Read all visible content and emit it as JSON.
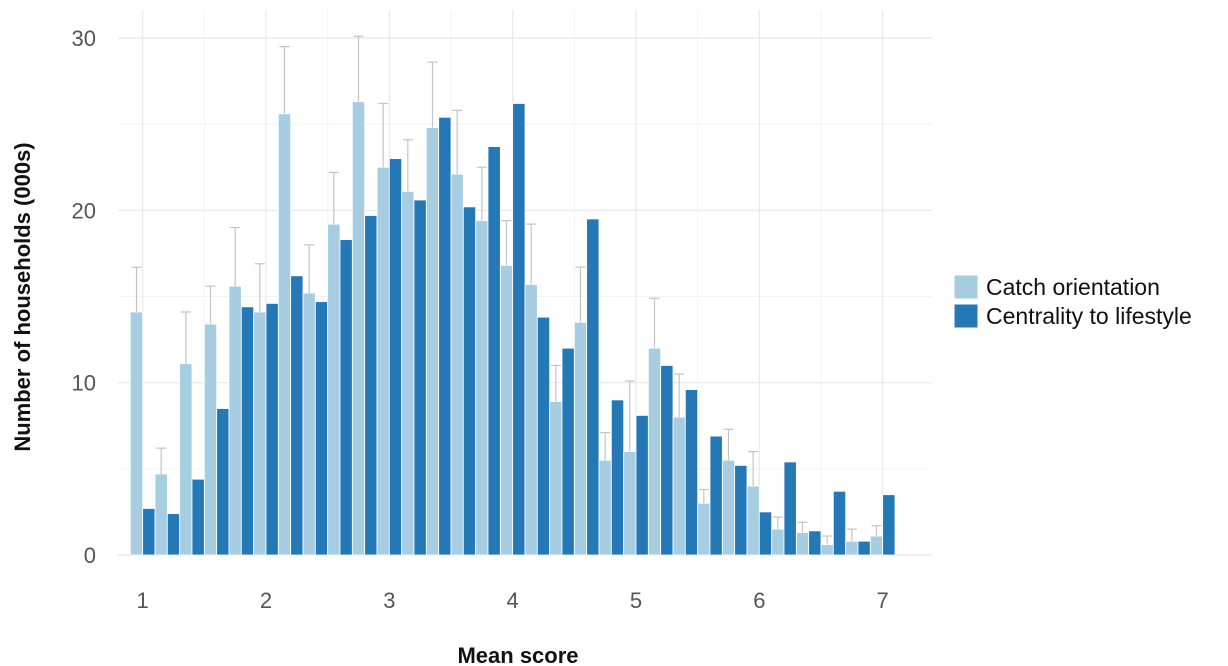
{
  "chart_data": {
    "type": "bar",
    "title": "",
    "xlabel": "Mean score",
    "ylabel": "Number of households (000s)",
    "xlim": [
      0.8,
      7.4
    ],
    "ylim": [
      0,
      30
    ],
    "x_ticks": [
      1,
      2,
      3,
      4,
      5,
      6,
      7
    ],
    "y_ticks": [
      0,
      10,
      20,
      30
    ],
    "grid": true,
    "legend_position": "right",
    "bin_width": 0.2,
    "x": [
      1.0,
      1.2,
      1.4,
      1.6,
      1.8,
      2.0,
      2.2,
      2.4,
      2.6,
      2.8,
      3.0,
      3.2,
      3.4,
      3.6,
      3.8,
      4.0,
      4.2,
      4.4,
      4.6,
      4.8,
      5.0,
      5.2,
      5.4,
      5.6,
      5.8,
      6.0,
      6.2,
      6.4,
      6.6,
      6.8,
      7.0
    ],
    "series": [
      {
        "name": "Catch orientation",
        "color": "#a6cde2",
        "values": [
          14.1,
          4.7,
          11.1,
          13.4,
          15.6,
          14.1,
          25.6,
          15.2,
          19.2,
          26.3,
          22.5,
          21.1,
          24.8,
          22.1,
          19.4,
          16.8,
          15.7,
          8.9,
          13.5,
          5.5,
          6.0,
          12.0,
          8.0,
          3.0,
          5.5,
          4.0,
          1.5,
          1.3,
          0.6,
          0.8,
          1.1
        ],
        "error": [
          2.6,
          1.5,
          3.0,
          2.2,
          3.4,
          2.8,
          3.9,
          2.8,
          3.0,
          3.8,
          3.7,
          3.0,
          3.8,
          3.7,
          3.1,
          2.6,
          3.5,
          2.1,
          3.2,
          1.6,
          4.1,
          2.9,
          2.5,
          0.8,
          1.8,
          2.0,
          0.7,
          0.6,
          0.5,
          0.7,
          0.6
        ]
      },
      {
        "name": "Centrality to lifestyle",
        "color": "#2378b5",
        "values": [
          2.7,
          2.4,
          4.4,
          8.5,
          14.4,
          14.6,
          16.2,
          14.7,
          18.3,
          19.7,
          23.0,
          20.6,
          25.4,
          20.2,
          23.7,
          26.2,
          13.8,
          12.0,
          19.5,
          9.0,
          8.1,
          11.0,
          9.6,
          6.9,
          5.2,
          2.5,
          5.4,
          1.4,
          3.7,
          0.8,
          3.5
        ]
      }
    ]
  }
}
